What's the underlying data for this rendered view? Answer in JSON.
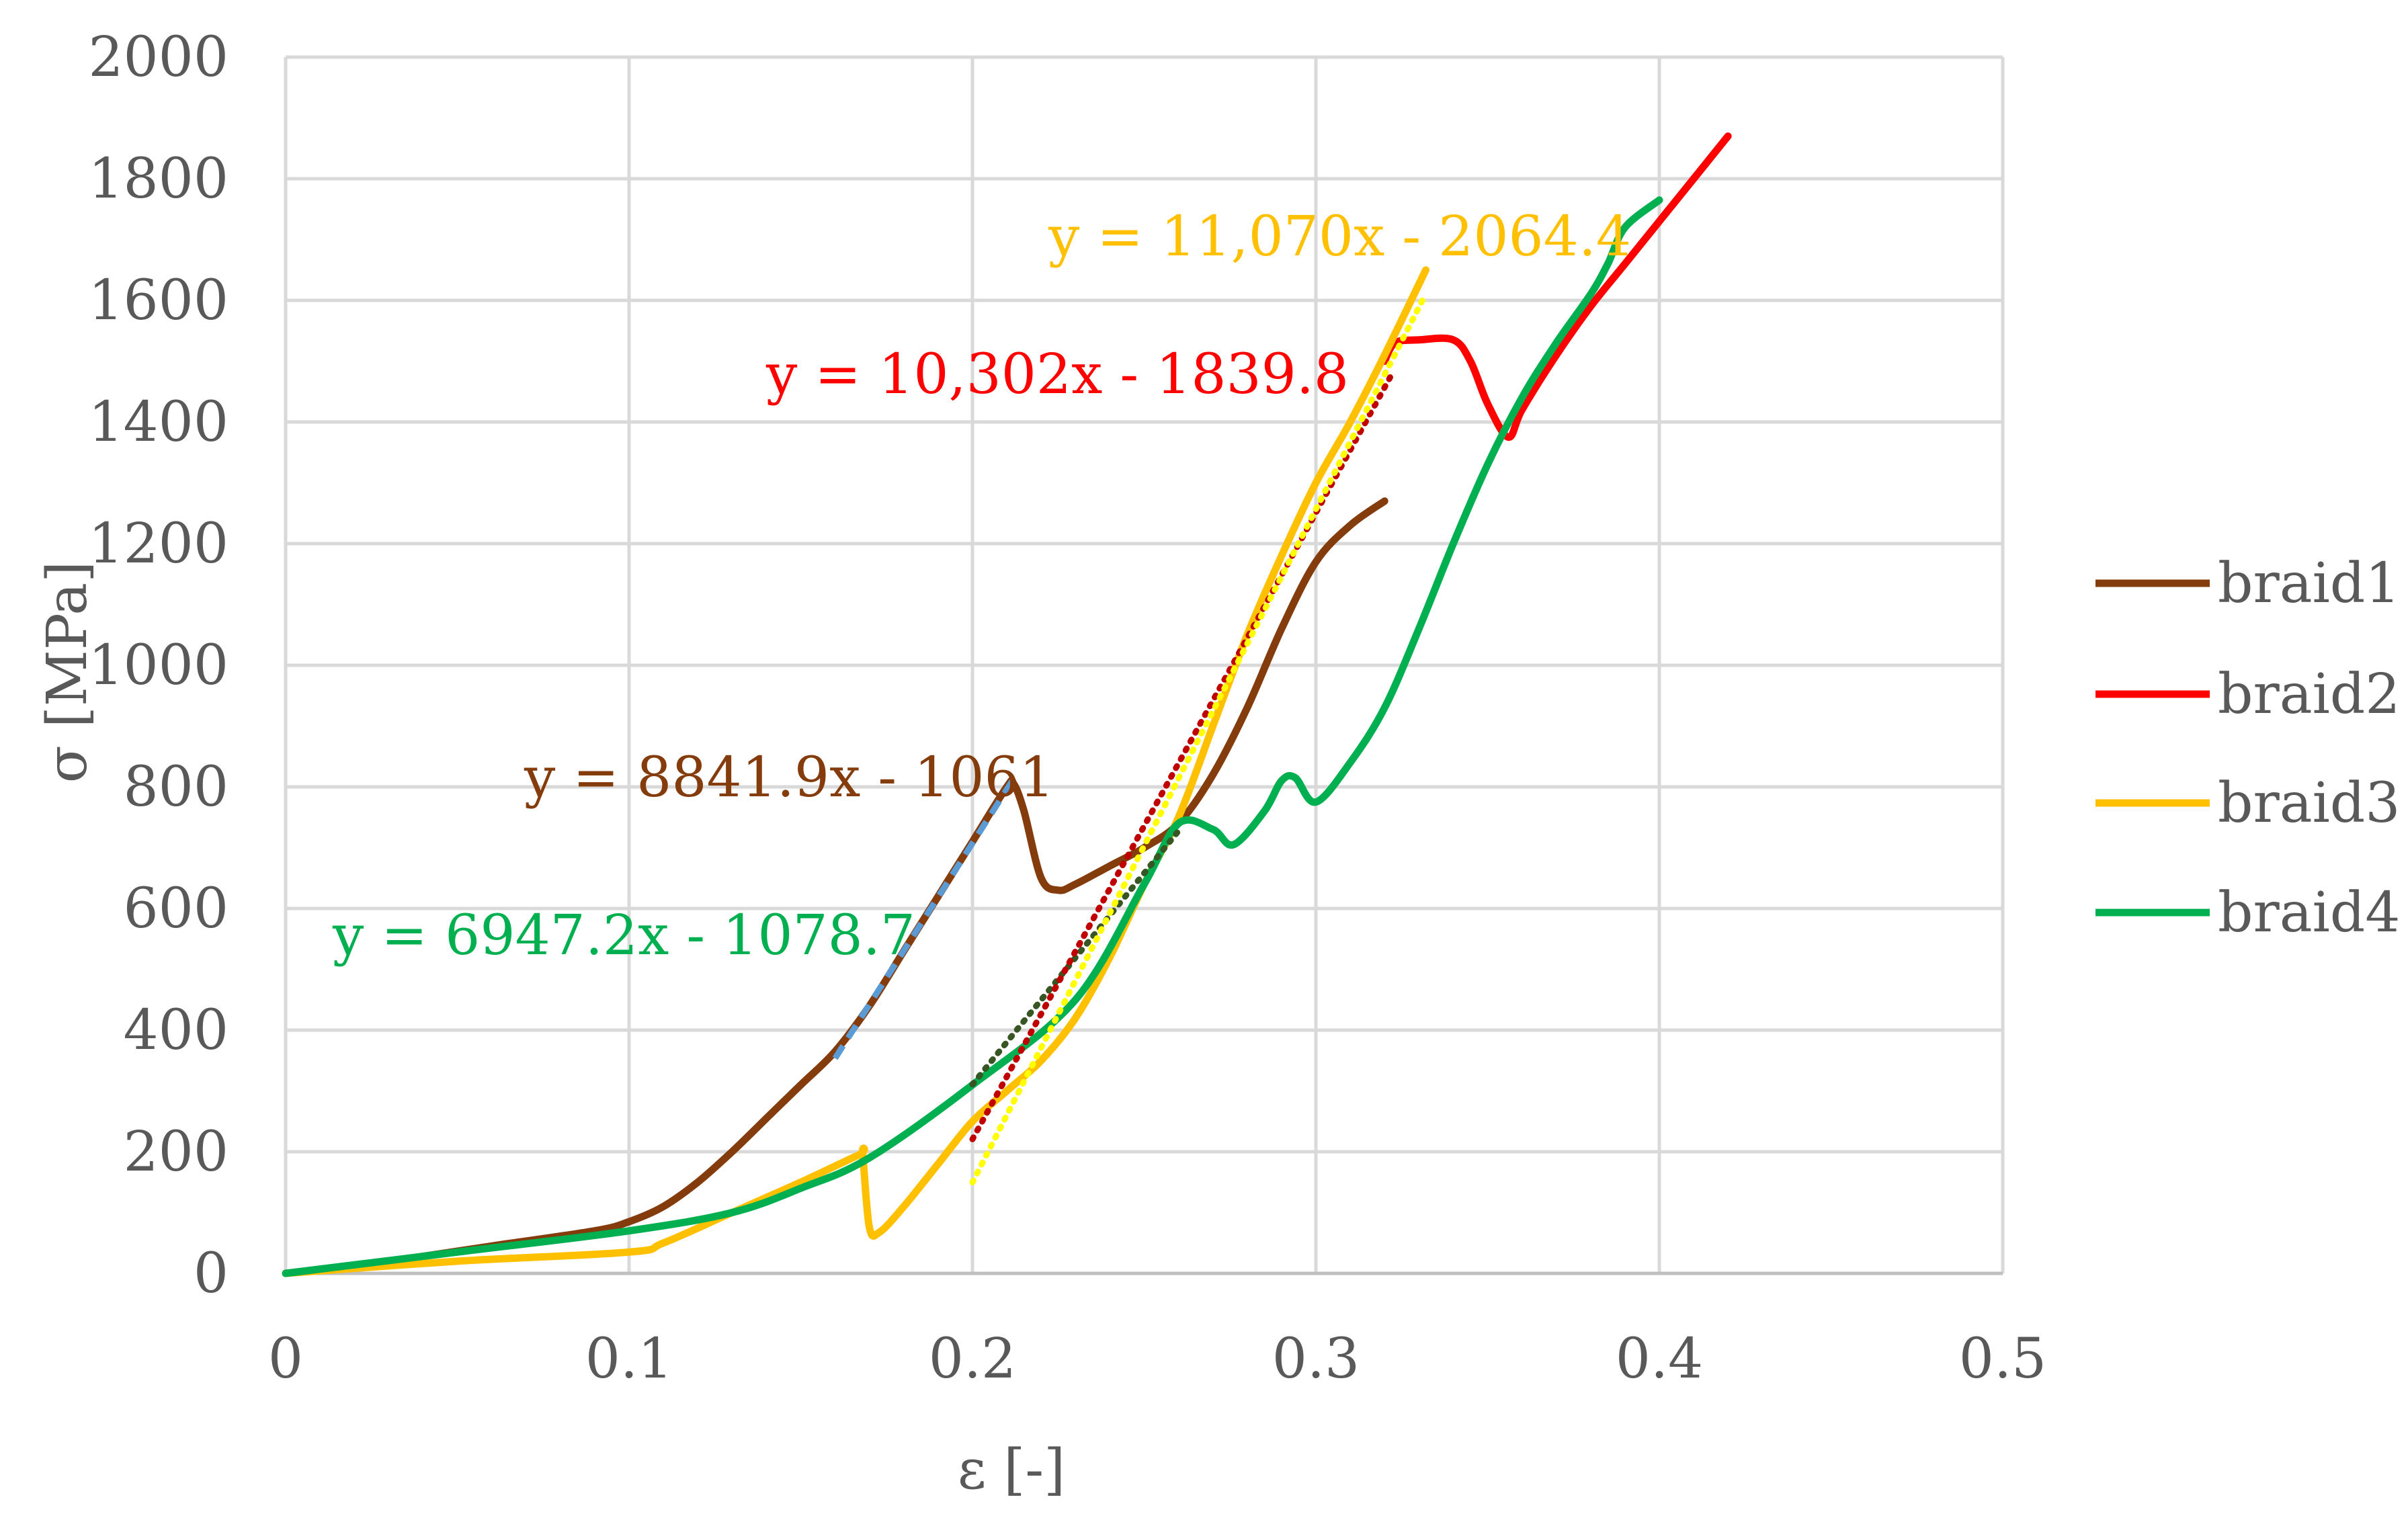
{
  "chart_data": {
    "type": "line",
    "title": "",
    "xlabel": "ε [-]",
    "ylabel": "σ [MPa]",
    "xlim": [
      0,
      0.5
    ],
    "ylim": [
      0,
      2000
    ],
    "xticks": [
      "0",
      "0.1",
      "0.2",
      "0.3",
      "0.4",
      "0.5"
    ],
    "yticks": [
      "0",
      "200",
      "400",
      "600",
      "800",
      "1000",
      "1200",
      "1400",
      "1600",
      "1800",
      "2000"
    ],
    "grid": true,
    "legend_position": "right",
    "series": [
      {
        "name": "braid1",
        "color": "#843C0C",
        "x": [
          0,
          0.03,
          0.06,
          0.09,
          0.1,
          0.11,
          0.12,
          0.13,
          0.14,
          0.15,
          0.16,
          0.17,
          0.18,
          0.19,
          0.2,
          0.21,
          0.212,
          0.215,
          0.22,
          0.225,
          0.23,
          0.24,
          0.25,
          0.26,
          0.27,
          0.28,
          0.29,
          0.3,
          0.31,
          0.32
        ],
        "y": [
          0,
          20,
          45,
          70,
          85,
          110,
          150,
          200,
          255,
          310,
          365,
          440,
          530,
          620,
          710,
          800,
          805,
          760,
          650,
          630,
          640,
          670,
          700,
          740,
          820,
          930,
          1060,
          1170,
          1230,
          1270
        ]
      },
      {
        "name": "braid2",
        "color": "#FF0000",
        "x": [
          0.32,
          0.323,
          0.33,
          0.34,
          0.345,
          0.35,
          0.356,
          0.36,
          0.37,
          0.38,
          0.39,
          0.4,
          0.41,
          0.42
        ],
        "y": [
          1500,
          1530,
          1535,
          1535,
          1500,
          1430,
          1375,
          1420,
          1510,
          1590,
          1660,
          1730,
          1800,
          1870
        ]
      },
      {
        "name": "braid3",
        "color": "#FFC000",
        "x": [
          0,
          0.05,
          0.1,
          0.11,
          0.13,
          0.15,
          0.167,
          0.168,
          0.17,
          0.173,
          0.18,
          0.19,
          0.2,
          0.21,
          0.22,
          0.23,
          0.24,
          0.25,
          0.26,
          0.27,
          0.28,
          0.29,
          0.3,
          0.31,
          0.32,
          0.332
        ],
        "y": [
          0,
          20,
          35,
          50,
          100,
          150,
          195,
          195,
          75,
          68,
          110,
          180,
          250,
          300,
          350,
          420,
          520,
          640,
          750,
          900,
          1050,
          1180,
          1300,
          1400,
          1510,
          1650
        ]
      },
      {
        "name": "braid4",
        "color": "#00B050",
        "x": [
          0,
          0.05,
          0.1,
          0.13,
          0.15,
          0.17,
          0.2,
          0.23,
          0.25,
          0.26,
          0.27,
          0.276,
          0.285,
          0.29,
          0.294,
          0.3,
          0.31,
          0.32,
          0.33,
          0.34,
          0.35,
          0.36,
          0.37,
          0.38,
          0.385,
          0.39,
          0.4
        ],
        "y": [
          0,
          35,
          70,
          100,
          140,
          190,
          310,
          450,
          640,
          740,
          730,
          705,
          760,
          810,
          815,
          775,
          840,
          930,
          1060,
          1200,
          1330,
          1440,
          1530,
          1610,
          1660,
          1720,
          1765
        ]
      }
    ],
    "trendlines": [
      {
        "equation": "y = 8841.9x - 1061",
        "color": "#843C0C",
        "line_color": "#5B9BD5",
        "dash": "dash",
        "x_range": [
          0.16,
          0.212
        ]
      },
      {
        "equation": "y = 6947.2x - 1078.7",
        "color": "#00B050",
        "line_color": "#375623",
        "dash": "dot",
        "x_range": [
          0.2,
          0.26
        ]
      },
      {
        "equation": "y = 10,302x - 1839.8",
        "color": "#FF0000",
        "line_color": "#C00000",
        "dash": "dot",
        "x_range": [
          0.2,
          0.322
        ]
      },
      {
        "equation": "y = 11,070x - 2064.4",
        "color": "#FFC000",
        "line_color": "#FFFF00",
        "dash": "dot",
        "x_range": [
          0.2,
          0.332
        ]
      }
    ]
  }
}
